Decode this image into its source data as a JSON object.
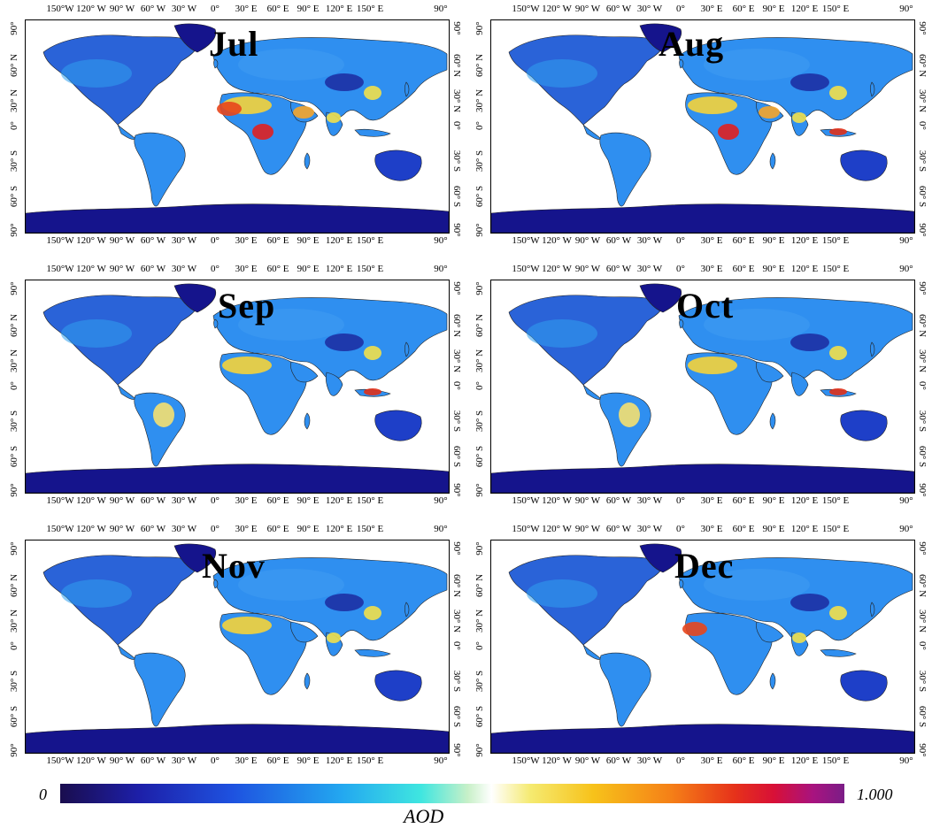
{
  "panels": [
    {
      "month": "Jul",
      "hotspots": [
        "sahara",
        "westafrica",
        "centralafrica",
        "arabia",
        "india",
        "eastchina"
      ]
    },
    {
      "month": "Aug",
      "hotspots": [
        "sahara",
        "centralafrica",
        "arabia",
        "india",
        "eastchina",
        "indonesia"
      ]
    },
    {
      "month": "Sep",
      "hotspots": [
        "sahara",
        "amazon",
        "indonesia",
        "eastchina"
      ]
    },
    {
      "month": "Oct",
      "hotspots": [
        "sahara",
        "amazon",
        "indonesia",
        "eastchina"
      ]
    },
    {
      "month": "Nov",
      "hotspots": [
        "sahara",
        "eastchina",
        "india"
      ]
    },
    {
      "month": "Dec",
      "hotspots": [
        "westafrica",
        "eastchina",
        "india"
      ]
    }
  ],
  "x_ticks": [
    "150°W",
    "120° W",
    "90° W",
    "60° W",
    "30° W",
    "0°",
    "30° E",
    "60° E",
    "90° E",
    "120° E",
    "150° E",
    "90°"
  ],
  "y_ticks": [
    "90°",
    "60° N",
    "30° N",
    "0°",
    "30° S",
    "60° S",
    "90°"
  ],
  "colorbar": {
    "min_label": "0",
    "max_label": "1.000",
    "label": "AOD"
  },
  "colors": {
    "ocean": "#ffffff",
    "land_low": "#1b1ea0",
    "land_mid": "#2f8ff0",
    "land_high": "#f6d12a",
    "hot": "#e02a1c",
    "antarctica": "#15148c"
  }
}
